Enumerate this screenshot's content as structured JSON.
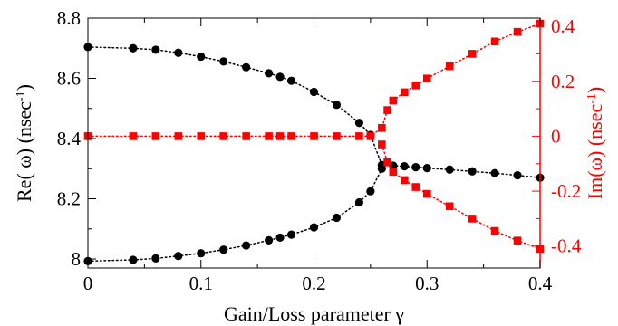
{
  "chart_data": {
    "type": "scatter",
    "xlabel": "Gain/Loss parameter γ",
    "ylabel_left": "Re( ω) (nsec",
    "ylabel_left_sup": "-1",
    "ylabel_left_end": ")",
    "ylabel_right": "Im(ω) (nsec",
    "ylabel_right_sup": "-1",
    "ylabel_right_end": ")",
    "xlim": [
      0,
      0.4
    ],
    "ylim_left": [
      7.97,
      8.8
    ],
    "ylim_right": [
      -0.48,
      0.43
    ],
    "x_ticks": [
      0,
      0.1,
      0.2,
      0.3,
      0.4
    ],
    "x_tick_labels": [
      "0",
      "0.1",
      "0.2",
      "0.3",
      "0.4"
    ],
    "y_left_ticks": [
      8,
      8.2,
      8.4,
      8.6,
      8.8
    ],
    "y_left_tick_labels": [
      "8",
      "8.2",
      "8.4",
      "8.6",
      "8.8"
    ],
    "y_right_ticks": [
      -0.4,
      -0.2,
      0,
      0.2,
      0.4
    ],
    "y_right_tick_labels": [
      "-0.4",
      "-0.2",
      "0",
      "0.2",
      "0.4"
    ],
    "grid": false,
    "left_axis_color": "#000000",
    "right_axis_color": "#ff0000",
    "series": [
      {
        "axis": "left",
        "marker": "circle",
        "color": "#000000",
        "points": [
          [
            0,
            8.704
          ],
          [
            0.04,
            8.7
          ],
          [
            0.06,
            8.695
          ],
          [
            0.08,
            8.685
          ],
          [
            0.1,
            8.672
          ],
          [
            0.12,
            8.656
          ],
          [
            0.14,
            8.637
          ],
          [
            0.16,
            8.617
          ],
          [
            0.17,
            8.605
          ],
          [
            0.18,
            8.592
          ],
          [
            0.2,
            8.555
          ],
          [
            0.22,
            8.512
          ],
          [
            0.24,
            8.452
          ],
          [
            0.25,
            8.412
          ],
          [
            0.26,
            8.312
          ],
          [
            0.27,
            8.31
          ],
          [
            0.28,
            8.308
          ],
          [
            0.29,
            8.305
          ],
          [
            0.3,
            8.302
          ],
          [
            0.32,
            8.297
          ],
          [
            0.34,
            8.291
          ],
          [
            0.36,
            8.285
          ],
          [
            0.38,
            8.278
          ],
          [
            0.4,
            8.27
          ]
        ]
      },
      {
        "axis": "left",
        "marker": "circle",
        "color": "#000000",
        "points": [
          [
            0,
            7.993
          ],
          [
            0.04,
            7.997
          ],
          [
            0.06,
            8.002
          ],
          [
            0.08,
            8.01
          ],
          [
            0.1,
            8.019
          ],
          [
            0.12,
            8.031
          ],
          [
            0.14,
            8.045
          ],
          [
            0.16,
            8.062
          ],
          [
            0.17,
            8.071
          ],
          [
            0.18,
            8.081
          ],
          [
            0.2,
            8.105
          ],
          [
            0.22,
            8.137
          ],
          [
            0.24,
            8.188
          ],
          [
            0.25,
            8.225
          ],
          [
            0.26,
            8.3
          ]
        ]
      },
      {
        "axis": "right",
        "marker": "square",
        "color": "#ff0000",
        "points": [
          [
            0,
            0
          ],
          [
            0.04,
            0
          ],
          [
            0.06,
            0
          ],
          [
            0.08,
            0
          ],
          [
            0.1,
            0
          ],
          [
            0.12,
            0
          ],
          [
            0.14,
            0
          ],
          [
            0.16,
            0
          ],
          [
            0.17,
            0
          ],
          [
            0.18,
            0
          ],
          [
            0.2,
            0
          ],
          [
            0.22,
            0
          ],
          [
            0.24,
            0
          ],
          [
            0.25,
            0
          ],
          [
            0.26,
            0.03
          ],
          [
            0.265,
            0.095
          ],
          [
            0.27,
            0.13
          ],
          [
            0.28,
            0.16
          ],
          [
            0.29,
            0.185
          ],
          [
            0.3,
            0.21
          ],
          [
            0.32,
            0.255
          ],
          [
            0.34,
            0.3
          ],
          [
            0.36,
            0.345
          ],
          [
            0.38,
            0.38
          ],
          [
            0.4,
            0.41
          ]
        ]
      },
      {
        "axis": "right",
        "marker": "square",
        "color": "#ff0000",
        "points": [
          [
            0.26,
            -0.03
          ],
          [
            0.265,
            -0.095
          ],
          [
            0.27,
            -0.13
          ],
          [
            0.28,
            -0.16
          ],
          [
            0.29,
            -0.185
          ],
          [
            0.3,
            -0.21
          ],
          [
            0.32,
            -0.255
          ],
          [
            0.34,
            -0.3
          ],
          [
            0.36,
            -0.345
          ],
          [
            0.38,
            -0.38
          ],
          [
            0.4,
            -0.41
          ]
        ]
      }
    ]
  }
}
